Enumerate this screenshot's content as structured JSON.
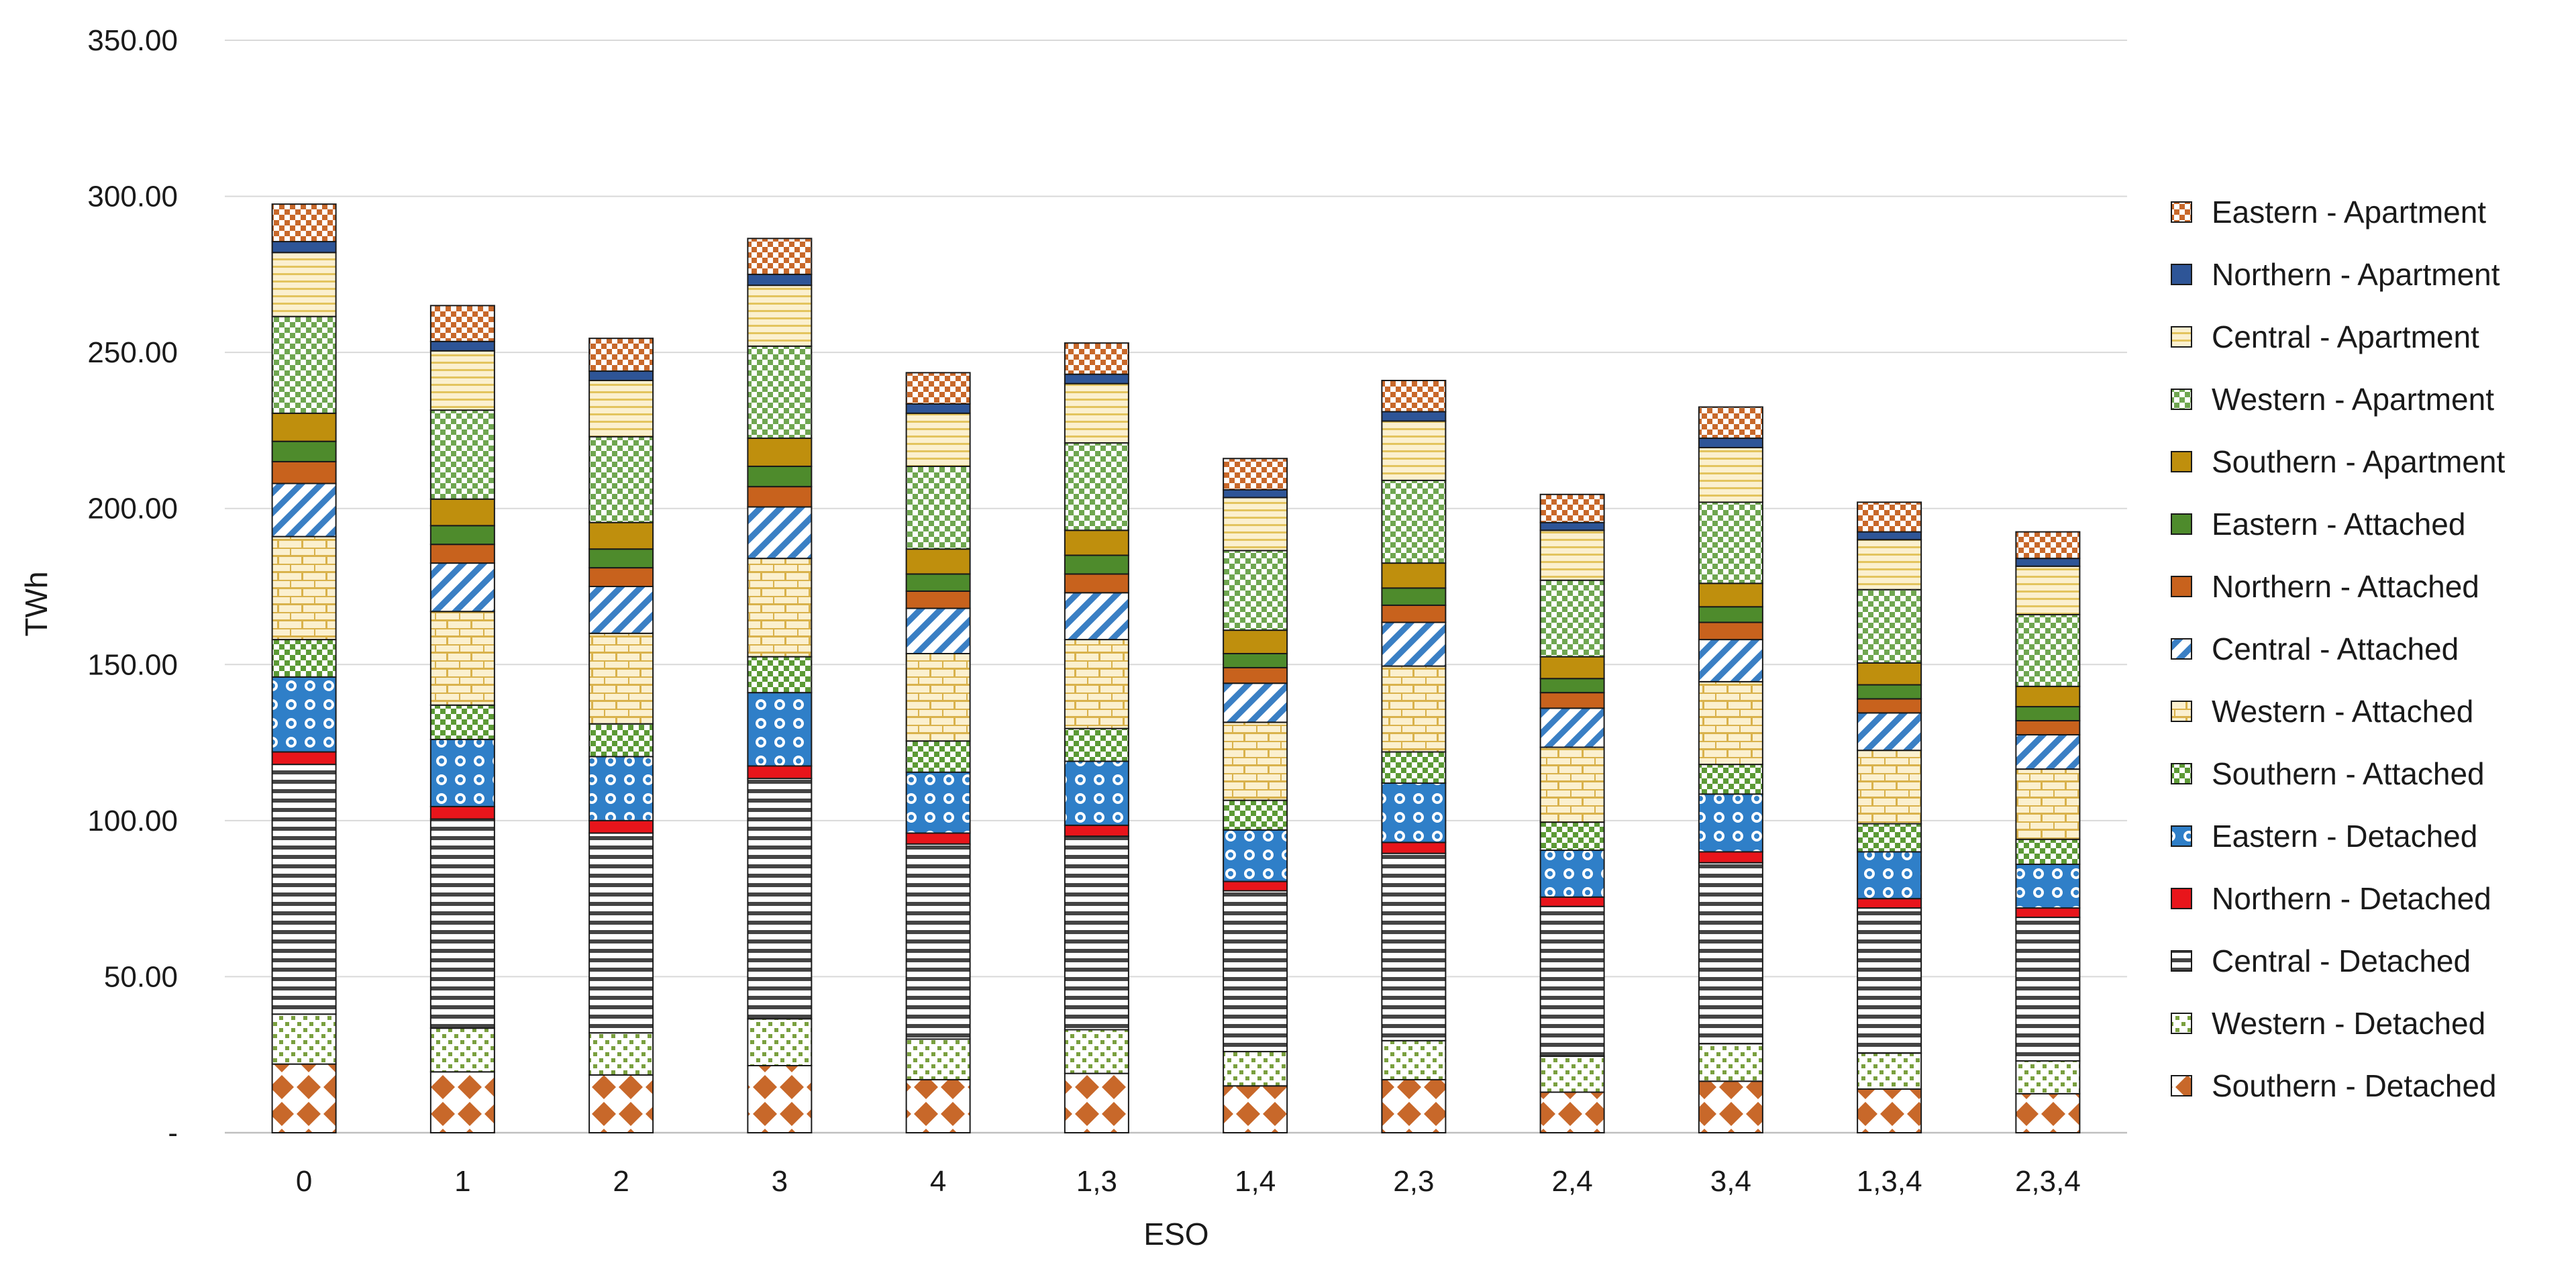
{
  "chart_data": {
    "type": "bar",
    "stacked": true,
    "title": "",
    "xlabel": "ESO",
    "ylabel": "TWh",
    "ylim": [
      0,
      350
    ],
    "y_ticks": [
      0,
      50,
      100,
      150,
      200,
      250,
      300,
      350
    ],
    "y_tick_labels": [
      "-",
      "50.00",
      "100.00",
      "150.00",
      "200.00",
      "250.00",
      "300.00",
      "350.00"
    ],
    "grid": true,
    "legend_position": "right",
    "categories": [
      "0",
      "1",
      "2",
      "3",
      "4",
      "1,3",
      "1,4",
      "2,3",
      "2,4",
      "3,4",
      "1,3,4",
      "2,3,4"
    ],
    "series": [
      {
        "name": "Southern - Detached",
        "color": "#c8682a",
        "pattern": "diamond",
        "values": [
          22,
          19.5,
          18.5,
          21.5,
          17,
          19,
          15,
          17,
          13,
          16.5,
          14,
          12.5
        ]
      },
      {
        "name": "Western - Detached",
        "color": "#7aa03f",
        "pattern": "dots",
        "values": [
          16,
          14,
          13.5,
          15,
          13,
          14,
          11,
          12.5,
          11.5,
          12,
          11.5,
          10.5
        ]
      },
      {
        "name": "Central - Detached",
        "color": "#444444",
        "pattern": "hstripes",
        "values": [
          80,
          67,
          64,
          77,
          62.5,
          62,
          51.5,
          60,
          48,
          58,
          46.5,
          46
        ]
      },
      {
        "name": "Northern - Detached",
        "color": "#e8151b",
        "pattern": "solid",
        "values": [
          4,
          4,
          4,
          4,
          3.5,
          3.5,
          3,
          3.5,
          3,
          3.5,
          3,
          3
        ]
      },
      {
        "name": "Eastern - Detached",
        "color": "#2f7fc8",
        "pattern": "circles",
        "values": [
          24,
          21.5,
          20.5,
          23.5,
          19.5,
          20.5,
          16.5,
          19,
          15,
          18.5,
          15,
          14
        ]
      },
      {
        "name": "Southern - Attached",
        "color": "#5c9a35",
        "pattern": "checker",
        "values": [
          12,
          11,
          10.5,
          11.5,
          10,
          10.5,
          9.5,
          10,
          9,
          9.5,
          9,
          8
        ]
      },
      {
        "name": "Western - Attached",
        "color": "#d9b24c",
        "pattern": "brick",
        "values": [
          33,
          30,
          29,
          31.5,
          28,
          28.5,
          25,
          27.5,
          24,
          26.5,
          23.5,
          22.5
        ]
      },
      {
        "name": "Central - Attached",
        "color": "#3a7fc4",
        "pattern": "diagonal",
        "values": [
          17,
          15.5,
          15,
          16.5,
          14.5,
          15,
          12.5,
          14,
          12.5,
          13.5,
          12,
          11
        ]
      },
      {
        "name": "Northern - Attached",
        "color": "#c8621d",
        "pattern": "solid",
        "values": [
          7,
          6,
          6,
          6.5,
          5.5,
          6,
          5,
          5.5,
          5,
          5.5,
          4.5,
          4.5
        ]
      },
      {
        "name": "Eastern - Attached",
        "color": "#4e8b2c",
        "pattern": "solid",
        "values": [
          6.5,
          6,
          6,
          6.5,
          5.5,
          6,
          4.5,
          5.5,
          4.5,
          5,
          4.5,
          4.5
        ]
      },
      {
        "name": "Southern - Apartment",
        "color": "#bf8f0d",
        "pattern": "solid",
        "values": [
          9,
          8.5,
          8.5,
          9,
          8,
          8,
          7.5,
          8,
          7,
          7.5,
          7,
          6.5
        ]
      },
      {
        "name": "Western - Apartment",
        "color": "#6fa650",
        "pattern": "checker",
        "values": [
          31,
          28.5,
          27.5,
          29.5,
          26.5,
          28,
          25.5,
          26.5,
          24.5,
          26,
          23.5,
          23
        ]
      },
      {
        "name": "Central - Apartment",
        "color": "#e3c45e",
        "pattern": "hlines",
        "values": [
          20.5,
          19,
          18,
          19.5,
          17,
          19,
          17,
          19,
          16,
          17.5,
          16,
          15.5
        ]
      },
      {
        "name": "Northern - Apartment",
        "color": "#2e5597",
        "pattern": "solid",
        "values": [
          3.5,
          3,
          3,
          3.5,
          3,
          3,
          2.5,
          3,
          2.5,
          3,
          2.5,
          2.5
        ]
      },
      {
        "name": "Eastern - Apartment",
        "color": "#c8682a",
        "pattern": "checker",
        "values": [
          12,
          11.5,
          10.5,
          11.5,
          10,
          10,
          10,
          10,
          9,
          10,
          9.5,
          8.5
        ]
      }
    ]
  }
}
